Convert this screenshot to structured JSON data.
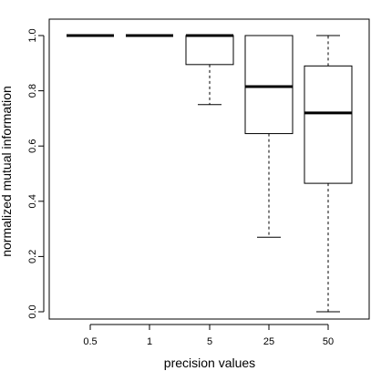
{
  "chart_data": {
    "type": "boxplot",
    "title": "",
    "xlabel": "precision values",
    "ylabel": "normalized mutual information",
    "categories": [
      "0.5",
      "1",
      "5",
      "25",
      "50"
    ],
    "ylim": [
      0.0,
      1.0
    ],
    "yticks": [
      "0.0",
      "0.2",
      "0.4",
      "0.6",
      "0.8",
      "1.0"
    ],
    "boxes": [
      {
        "category": "0.5",
        "whisker_low": 1.0,
        "q1": 1.0,
        "median": 1.0,
        "q3": 1.0,
        "whisker_high": 1.0
      },
      {
        "category": "1",
        "whisker_low": 1.0,
        "q1": 1.0,
        "median": 1.0,
        "q3": 1.0,
        "whisker_high": 1.0
      },
      {
        "category": "5",
        "whisker_low": 0.75,
        "q1": 0.895,
        "median": 1.0,
        "q3": 1.0,
        "whisker_high": 1.0
      },
      {
        "category": "25",
        "whisker_low": 0.27,
        "q1": 0.645,
        "median": 0.815,
        "q3": 1.0,
        "whisker_high": 1.0
      },
      {
        "category": "50",
        "whisker_low": 0.0,
        "q1": 0.465,
        "median": 0.72,
        "q3": 0.89,
        "whisker_high": 1.0
      }
    ],
    "grid": false,
    "legend": "none"
  }
}
